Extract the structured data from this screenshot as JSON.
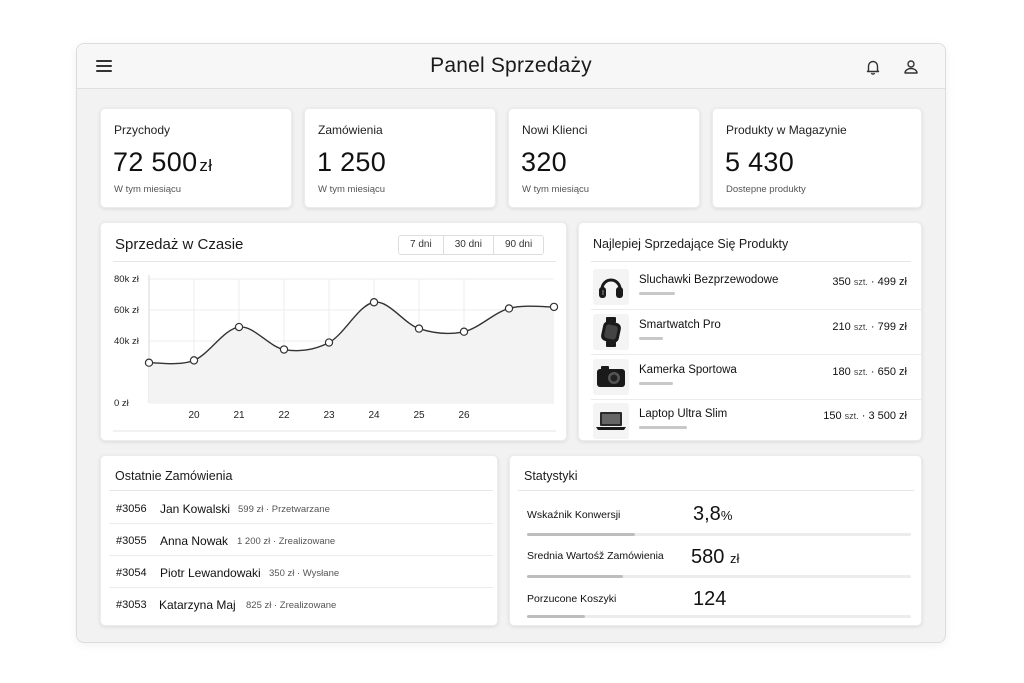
{
  "header": {
    "title": "Panel Sprzedaży"
  },
  "kpis": [
    {
      "label": "Przychody",
      "value": "72 500",
      "unit": "zł",
      "sub": "W tym miesiącu"
    },
    {
      "label": "Zamówienia",
      "value": "1 250",
      "unit": "",
      "sub": "W tym miesiącu"
    },
    {
      "label": "Nowi Klienci",
      "value": "320",
      "unit": "",
      "sub": "W tym miesiącu"
    },
    {
      "label": "Produkty w Magazynie",
      "value": "5 430",
      "unit": "",
      "sub": "Dostepne produkty"
    }
  ],
  "sales_chart": {
    "title": "Sprzedaż w Czasie",
    "ranges": [
      "7 dni",
      "30 dni",
      "90 dni"
    ]
  },
  "chart_data": {
    "type": "line",
    "title": "Sprzedaż w Czasie",
    "y_ticks": [
      "80k zł",
      "60k zł",
      "40k zł",
      "0 zł"
    ],
    "x_ticks": [
      "20",
      "21",
      "22",
      "23",
      "24",
      "25",
      "26"
    ],
    "ylim": [
      0,
      80000
    ],
    "x": [
      19,
      20,
      21,
      22,
      23,
      24,
      25,
      26,
      27,
      28
    ],
    "values": [
      26000,
      27500,
      49000,
      34500,
      39000,
      65000,
      48000,
      46000,
      61000,
      62000
    ],
    "grid": true
  },
  "top_products": {
    "title": "Najlepiej Sprzedające Się Produkty",
    "items": [
      {
        "name": "Sluchawki Bezprzewodowe",
        "qty": "350",
        "unit": "szt.",
        "price": "· 499 zł",
        "icon": "headphones-icon",
        "bar": 0.32
      },
      {
        "name": "Smartwatch Pro",
        "qty": "210",
        "unit": "szt.",
        "price": "· 799 zł",
        "icon": "smartwatch-icon",
        "bar": 0.22
      },
      {
        "name": "Kamerka Sportowa",
        "qty": "180",
        "unit": "szt.",
        "price": "· 650 zł",
        "icon": "camera-icon",
        "bar": 0.3
      },
      {
        "name": "Laptop Ultra Slim",
        "qty": "150",
        "unit": "szt.",
        "price": "· 3 500 zł",
        "icon": "laptop-icon",
        "bar": 0.42
      }
    ]
  },
  "recent_orders": {
    "title": "Ostatnie Zamówienia",
    "rows": [
      {
        "id": "#3056",
        "name": "Jan Kowalski",
        "meta": "599 zł · Przetwarzane"
      },
      {
        "id": "#3055",
        "name": "Anna Nowak",
        "meta": "1 200 zł · Zrealizowane"
      },
      {
        "id": "#3054",
        "name": "Piotr Lewandowaki",
        "meta": "350 zł · Wysłane"
      },
      {
        "id": "#3053",
        "name": "Katarzyna Maj",
        "meta": "825 zł · Zrealizowane"
      }
    ]
  },
  "stats": {
    "title": "Statystyki",
    "items": [
      {
        "label": "Wskaźnik Konwersji",
        "value": "3,8",
        "unit": "%",
        "progress": 0.28
      },
      {
        "label": "Srednia Wartośž Zamówienia",
        "value": "580",
        "unit": "zł",
        "progress": 0.25
      },
      {
        "label": "Porzucone Koszyki",
        "value": "124",
        "unit": "",
        "progress": 0.15
      }
    ]
  }
}
